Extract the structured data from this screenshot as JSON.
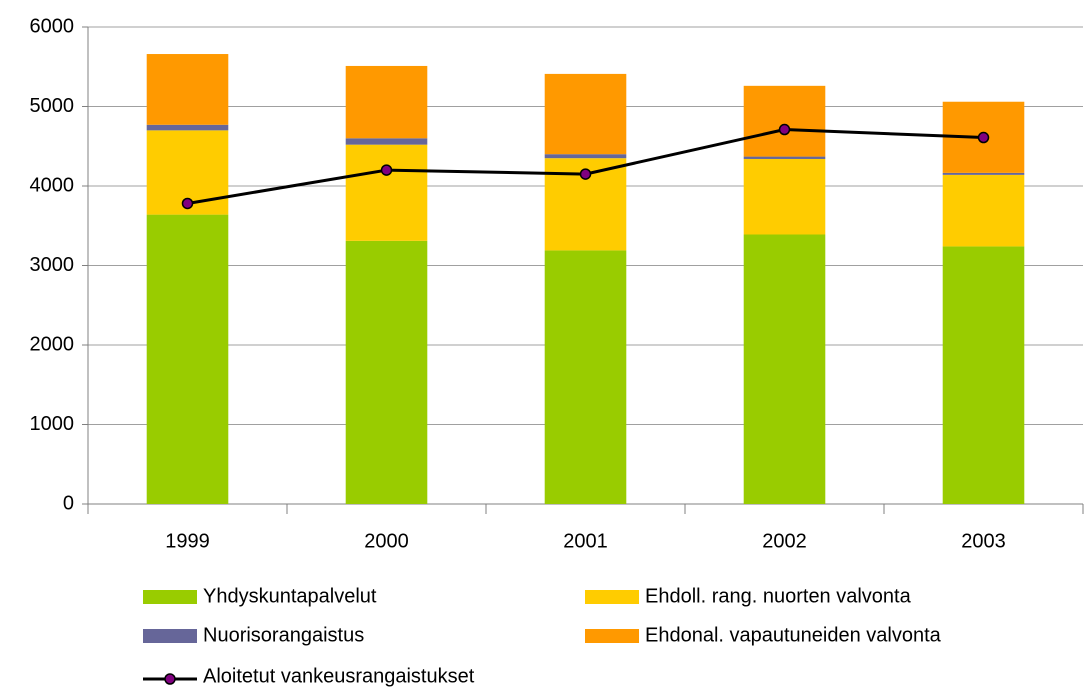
{
  "chart_data": {
    "type": "bar",
    "stacked": true,
    "categories": [
      "1999",
      "2000",
      "2001",
      "2002",
      "2003"
    ],
    "series": [
      {
        "name": "Yhdyskuntapalvelut",
        "color": "#99cc00",
        "values": [
          3640,
          3310,
          3190,
          3390,
          3240
        ]
      },
      {
        "name": "Ehdoll. rang. nuorten valvonta",
        "color": "#ffcc00",
        "values": [
          1060,
          1210,
          1160,
          950,
          900
        ]
      },
      {
        "name": "Nuorisorangaistus",
        "color": "#666699",
        "values": [
          70,
          80,
          50,
          30,
          25
        ]
      },
      {
        "name": "Ehdonal. vapautuneiden valvonta",
        "color": "#ff9900",
        "values": [
          890,
          910,
          1010,
          890,
          895
        ]
      },
      {
        "name": "Aloitetut vankeusrangaistukset",
        "type": "line",
        "color": "#000000",
        "marker_color": "#800080",
        "values": [
          3780,
          4200,
          4150,
          4710,
          4610
        ]
      }
    ],
    "ylim": [
      0,
      6000
    ],
    "yticks": [
      0,
      1000,
      2000,
      3000,
      4000,
      5000,
      6000
    ],
    "grid": true
  }
}
